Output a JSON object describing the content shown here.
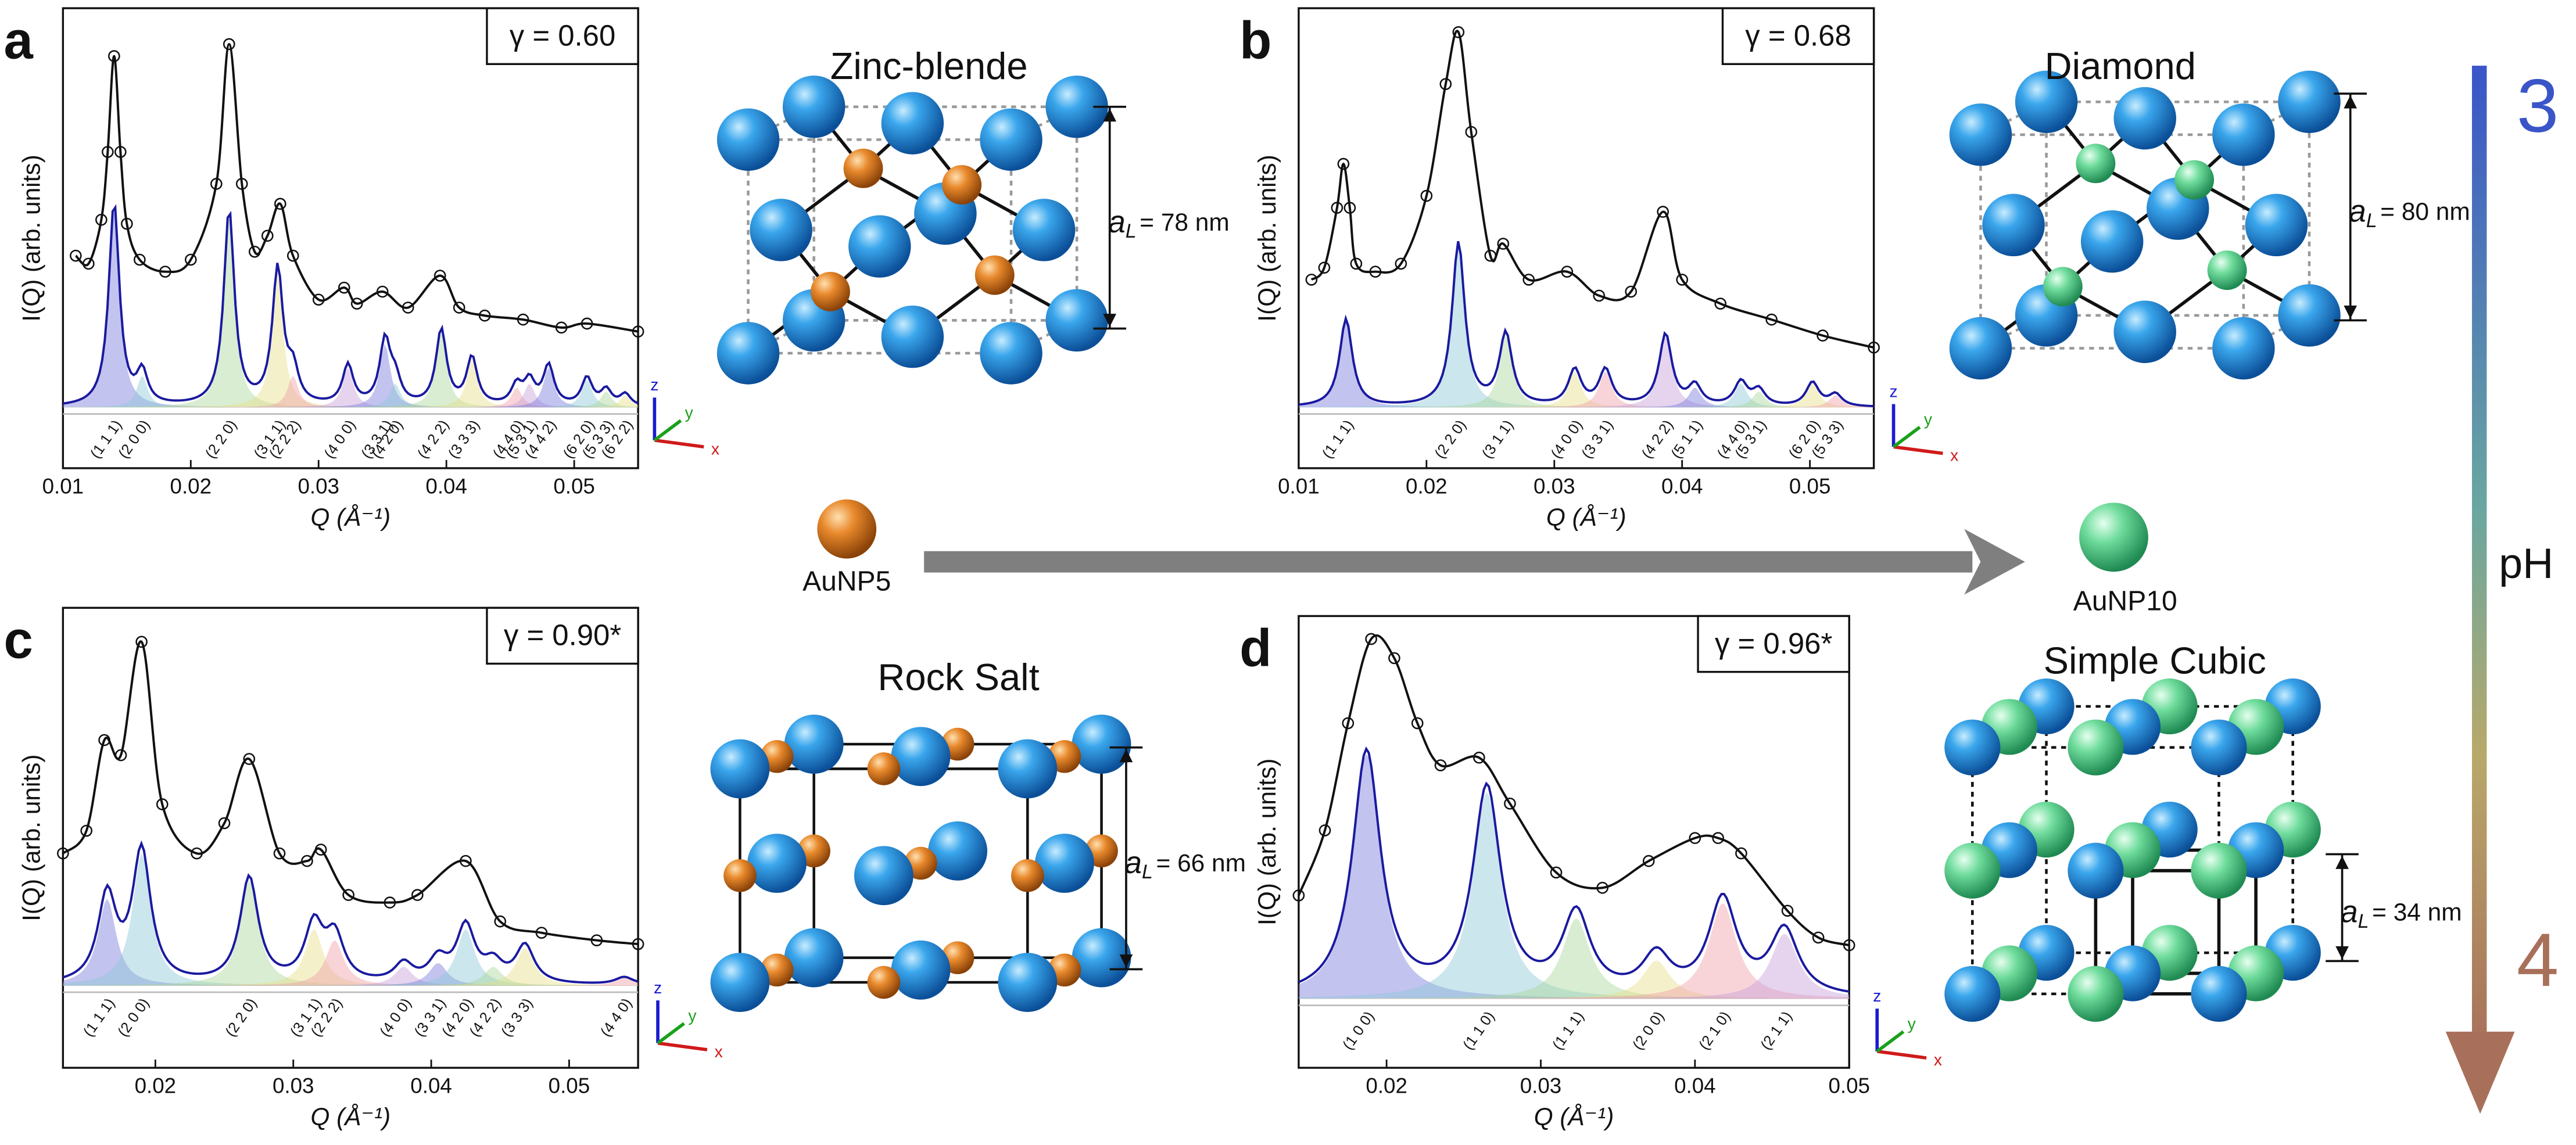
{
  "chart_data": [
    {
      "type": "line",
      "panel": "a",
      "annotation": "γ = 0.60",
      "ylabel": "I(Q) (arb. units)",
      "xlabel": "Q (Å⁻¹)",
      "xlim": [
        0.01,
        0.055
      ],
      "xticks": [
        0.01,
        0.02,
        0.03,
        0.04,
        0.05
      ],
      "ylim": [
        0,
        1
      ],
      "color": "#111111",
      "fit_color": "#1a1aa0",
      "x": [
        0.011,
        0.012,
        0.013,
        0.0135,
        0.014,
        0.0145,
        0.015,
        0.016,
        0.018,
        0.02,
        0.022,
        0.023,
        0.024,
        0.025,
        0.026,
        0.027,
        0.028,
        0.03,
        0.032,
        0.033,
        0.035,
        0.037,
        0.0395,
        0.041,
        0.043,
        0.046,
        0.049,
        0.051,
        0.055
      ],
      "values": [
        0.38,
        0.36,
        0.47,
        0.64,
        0.88,
        0.64,
        0.46,
        0.37,
        0.34,
        0.37,
        0.56,
        0.91,
        0.56,
        0.39,
        0.43,
        0.51,
        0.38,
        0.27,
        0.3,
        0.26,
        0.29,
        0.25,
        0.33,
        0.25,
        0.23,
        0.22,
        0.2,
        0.21,
        0.19
      ],
      "peaks": {
        "labels": [
          "(1 1 1)",
          "(2 0 0)",
          "(2 2 0)",
          "(3 1 1)",
          "(2 2 2)",
          "(4 0 0)",
          "(3 3 1)",
          "(4 2 0)",
          "(4 2 2)",
          "(3 3 3)",
          "(4 4 0)",
          "(5 3 1)",
          "(4 4 2)",
          "(6 2 0)",
          "(5 3 3)",
          "(6 2 2)"
        ],
        "x": [
          0.014,
          0.0162,
          0.023,
          0.0268,
          0.028,
          0.0323,
          0.0352,
          0.036,
          0.0396,
          0.042,
          0.0455,
          0.0465,
          0.048,
          0.051,
          0.0525,
          0.054
        ],
        "values": [
          0.51,
          0.08,
          0.49,
          0.34,
          0.08,
          0.1,
          0.16,
          0.06,
          0.19,
          0.12,
          0.05,
          0.06,
          0.1,
          0.07,
          0.04,
          0.03
        ]
      },
      "colors": [
        "#7b7bdc",
        "#8fc7d8",
        "#a9d89a",
        "#e6e08a",
        "#f0a0a8",
        "#c7a0dc"
      ],
      "structure": "Zinc-blende",
      "lattice": {
        "symbol": "a",
        "subscript": "L",
        "text": "= 78 nm"
      }
    },
    {
      "type": "line",
      "panel": "b",
      "annotation": "γ = 0.68",
      "ylabel": "I(Q) (arb. units)",
      "xlabel": "Q (Å⁻¹)",
      "xlim": [
        0.01,
        0.055
      ],
      "xticks": [
        0.01,
        0.02,
        0.03,
        0.04,
        0.05
      ],
      "ylim": [
        0,
        1
      ],
      "color": "#111111",
      "fit_color": "#1a1aa0",
      "x": [
        0.011,
        0.012,
        0.013,
        0.0135,
        0.014,
        0.0145,
        0.016,
        0.018,
        0.02,
        0.0215,
        0.0225,
        0.0235,
        0.025,
        0.026,
        0.028,
        0.031,
        0.0335,
        0.036,
        0.0385,
        0.04,
        0.043,
        0.047,
        0.051,
        0.055
      ],
      "values": [
        0.32,
        0.35,
        0.5,
        0.61,
        0.5,
        0.36,
        0.34,
        0.36,
        0.53,
        0.81,
        0.94,
        0.69,
        0.38,
        0.41,
        0.32,
        0.34,
        0.28,
        0.29,
        0.49,
        0.32,
        0.26,
        0.22,
        0.18,
        0.15
      ],
      "peaks": {
        "labels": [
          "(1 1 1)",
          "(2 2 0)",
          "(3 1 1)",
          "(4 0 0)",
          "(3 3 1)",
          "(4 2 2)",
          "(5 1 1)",
          "(4 4 0)",
          "(5 3 1)",
          "(6 2 0)",
          "(5 3 3)"
        ],
        "x": [
          0.0137,
          0.0225,
          0.0262,
          0.0316,
          0.034,
          0.0387,
          0.041,
          0.0446,
          0.046,
          0.0502,
          0.052
        ],
        "values": [
          0.22,
          0.41,
          0.18,
          0.09,
          0.09,
          0.18,
          0.05,
          0.06,
          0.04,
          0.06,
          0.03
        ]
      },
      "colors": [
        "#7b7bdc",
        "#8fc7d8",
        "#a9d89a",
        "#e6e08a",
        "#f0a0a8",
        "#c7a0dc"
      ],
      "structure": "Diamond",
      "lattice": {
        "symbol": "a",
        "subscript": "L",
        "text": "= 80 nm"
      }
    },
    {
      "type": "line",
      "panel": "c",
      "annotation": "γ = 0.90*",
      "ylabel": "I(Q) (arb. units)",
      "xlabel": "Q (Å⁻¹)",
      "xlim": [
        0.0133,
        0.055
      ],
      "xticks": [
        0.02,
        0.03,
        0.04,
        0.05
      ],
      "ylim": [
        0,
        1
      ],
      "color": "#111111",
      "fit_color": "#1a1aa0",
      "x": [
        0.0133,
        0.015,
        0.0163,
        0.0175,
        0.019,
        0.0205,
        0.023,
        0.025,
        0.0268,
        0.029,
        0.031,
        0.032,
        0.034,
        0.037,
        0.039,
        0.0425,
        0.045,
        0.048,
        0.052,
        0.055
      ],
      "values": [
        0.35,
        0.41,
        0.65,
        0.61,
        0.91,
        0.48,
        0.35,
        0.43,
        0.6,
        0.35,
        0.33,
        0.36,
        0.24,
        0.22,
        0.24,
        0.33,
        0.17,
        0.14,
        0.12,
        0.11
      ],
      "peaks": {
        "labels": [
          "(1 1 1)",
          "(2 0 0)",
          "(2 2 0)",
          "(3 1 1)",
          "(2 2 2)",
          "(4 0 0)",
          "(3 3 1)",
          "(4 2 0)",
          "(4 2 2)",
          "(3 3 3)",
          "(4 4 0)"
        ],
        "x": [
          0.0165,
          0.019,
          0.0268,
          0.0315,
          0.033,
          0.038,
          0.0405,
          0.0425,
          0.0445,
          0.0468,
          0.054
        ],
        "values": [
          0.23,
          0.35,
          0.28,
          0.15,
          0.12,
          0.05,
          0.06,
          0.15,
          0.05,
          0.1,
          0.02
        ]
      },
      "colors": [
        "#7b7bdc",
        "#8fc7d8",
        "#a9d89a",
        "#e6e08a",
        "#f0a0a8",
        "#c7a0dc"
      ],
      "structure": "Rock Salt",
      "lattice": {
        "symbol": "a",
        "subscript": "L",
        "text": "= 66 nm"
      }
    },
    {
      "type": "line",
      "panel": "d",
      "annotation": "γ = 0.96*",
      "ylabel": "I(Q) (arb. units)",
      "xlabel": "Q (Å⁻¹)",
      "xlim": [
        0.0143,
        0.05
      ],
      "xticks": [
        0.02,
        0.03,
        0.04,
        0.05
      ],
      "ylim": [
        0,
        1
      ],
      "color": "#111111",
      "fit_color": "#1a1aa0",
      "x": [
        0.0143,
        0.016,
        0.0175,
        0.019,
        0.0205,
        0.022,
        0.0235,
        0.026,
        0.028,
        0.031,
        0.034,
        0.037,
        0.04,
        0.0415,
        0.043,
        0.046,
        0.048,
        0.05
      ],
      "values": [
        0.27,
        0.44,
        0.72,
        0.94,
        0.89,
        0.72,
        0.61,
        0.63,
        0.51,
        0.33,
        0.29,
        0.36,
        0.42,
        0.42,
        0.38,
        0.23,
        0.16,
        0.14
      ],
      "peaks": {
        "labels": [
          "(1 0 0)",
          "(1 1 0)",
          "(1 1 1)",
          "(2 0 0)",
          "(2 1 0)",
          "(2 1 1)"
        ],
        "x": [
          0.0187,
          0.0265,
          0.0323,
          0.0375,
          0.0418,
          0.0458
        ],
        "values": [
          0.64,
          0.54,
          0.21,
          0.1,
          0.25,
          0.17
        ]
      },
      "colors": [
        "#7b7bdc",
        "#8fc7d8",
        "#a9d89a",
        "#e6e08a",
        "#f0a0a8",
        "#c7a0dc"
      ],
      "structure": "Simple Cubic",
      "lattice": {
        "symbol": "a",
        "subscript": "L",
        "text": "= 34 nm"
      }
    }
  ],
  "figure": {
    "particles": [
      "AuNP5",
      "AuNP10"
    ],
    "ph": {
      "label": "pH",
      "start": 3,
      "end": 4
    },
    "triad": [
      "x",
      "y",
      "z"
    ]
  }
}
